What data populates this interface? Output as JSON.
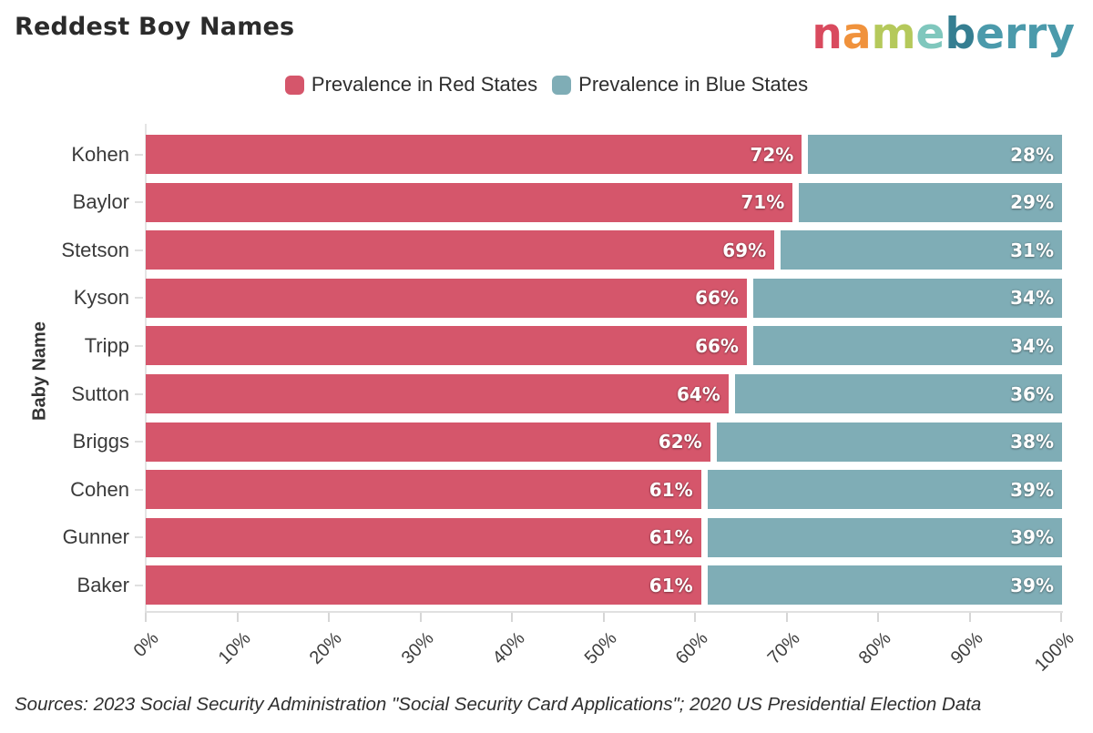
{
  "header": {
    "title": "Reddest Boy Names",
    "logo_name": "nameberry",
    "logo_letters": [
      {
        "ch": "n",
        "color": "#d94a5e"
      },
      {
        "ch": "a",
        "color": "#f0923c"
      },
      {
        "ch": "m",
        "color": "#b5c95b"
      },
      {
        "ch": "e",
        "color": "#7fc7bd"
      },
      {
        "ch": "b",
        "color": "#357e91"
      },
      {
        "ch": "e",
        "color": "#4b9aab"
      },
      {
        "ch": "r",
        "color": "#4b9aab"
      },
      {
        "ch": "r",
        "color": "#4b9aab"
      },
      {
        "ch": "y",
        "color": "#4b9aab"
      }
    ]
  },
  "legend": [
    {
      "label": "Prevalence in Red States",
      "color": "#d5566b"
    },
    {
      "label": "Prevalence in Blue States",
      "color": "#7fadb6"
    }
  ],
  "chart_data": {
    "type": "bar",
    "orientation": "horizontal",
    "stacked": true,
    "title": "Reddest Boy Names",
    "ylabel": "Baby Name",
    "xlabel": "",
    "xlim": [
      0,
      100
    ],
    "grid": false,
    "legend_position": "top-center",
    "value_suffix": "%",
    "categories": [
      "Kohen",
      "Baylor",
      "Stetson",
      "Kyson",
      "Tripp",
      "Sutton",
      "Briggs",
      "Cohen",
      "Gunner",
      "Baker"
    ],
    "series": [
      {
        "name": "Prevalence in Red States",
        "color": "#d5566b",
        "values": [
          72,
          71,
          69,
          66,
          66,
          64,
          62,
          61,
          61,
          61
        ]
      },
      {
        "name": "Prevalence in Blue States",
        "color": "#7fadb6",
        "values": [
          28,
          29,
          31,
          34,
          34,
          36,
          38,
          39,
          39,
          39
        ]
      }
    ],
    "x_ticks": [
      "0%",
      "10%",
      "20%",
      "30%",
      "40%",
      "50%",
      "60%",
      "70%",
      "80%",
      "90%",
      "100%"
    ]
  },
  "footer": {
    "source": "Sources: 2023 Social Security Administration \"Social Security Card Applications\"; 2020 US Presidential Election Data"
  }
}
